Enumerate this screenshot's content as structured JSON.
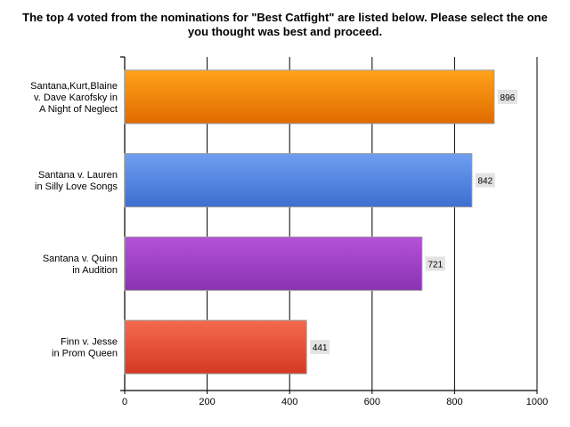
{
  "chart_data": {
    "type": "bar",
    "orientation": "horizontal",
    "title": "The top 4 voted from the nominations for \"Best Catfight\" are listed below. Please select the one you thought was best and proceed.",
    "categories": [
      "Santana,Kurt,Blaine v. Dave Karofsky in A Night of Neglect",
      "Santana v. Lauren in Silly Love Songs",
      "Santana v. Quinn in Audition",
      "Finn v. Jesse in Prom Queen"
    ],
    "category_lines": [
      [
        "Santana,Kurt,Blaine",
        "v. Dave Karofsky in",
        "A Night of Neglect"
      ],
      [
        "Santana v. Lauren",
        "in Silly Love Songs"
      ],
      [
        "Santana v. Quinn",
        "in Audition"
      ],
      [
        "Finn v. Jesse",
        "in Prom Queen"
      ]
    ],
    "values": [
      896,
      842,
      721,
      441
    ],
    "xlim": [
      0,
      1000
    ],
    "x_ticks": [
      0,
      200,
      400,
      600,
      800,
      1000
    ],
    "grid": true,
    "bar_colors": [
      {
        "top": "#ffa31a",
        "bottom": "#e06a00"
      },
      {
        "top": "#6f9ff0",
        "bottom": "#3d6fd1"
      },
      {
        "top": "#b552d8",
        "bottom": "#8a33b3"
      },
      {
        "top": "#f56a4e",
        "bottom": "#d43a22"
      }
    ],
    "data_label_bg": "#e3e3e3"
  }
}
